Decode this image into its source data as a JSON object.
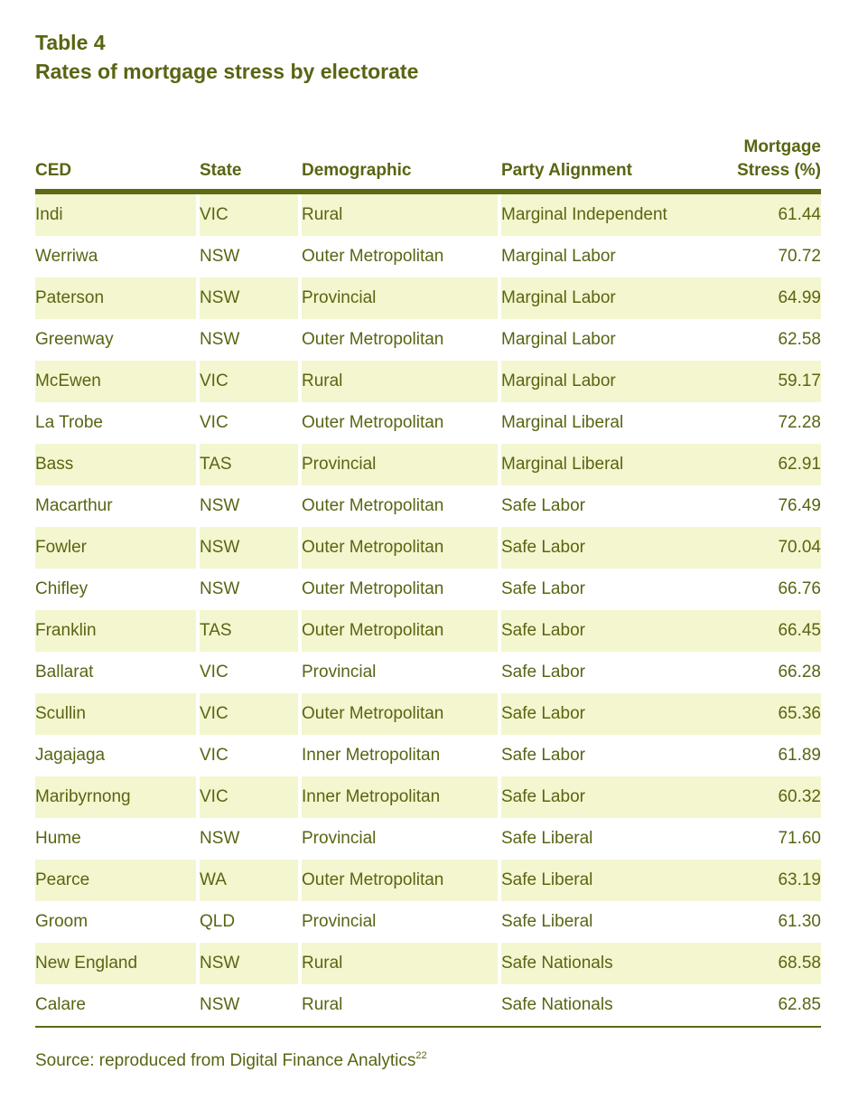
{
  "table_number": "Table 4",
  "table_title": "Rates of mortgage stress by electorate",
  "columns": {
    "ced": "CED",
    "state": "State",
    "demographic": "Demographic",
    "party": "Party Alignment",
    "stress_line1": "Mortgage",
    "stress_line2": "Stress (%)"
  },
  "rows": [
    {
      "ced": "Indi",
      "state": "VIC",
      "demographic": "Rural",
      "party": "Marginal Independent",
      "stress": "61.44"
    },
    {
      "ced": "Werriwa",
      "state": "NSW",
      "demographic": "Outer Metropolitan",
      "party": "Marginal Labor",
      "stress": "70.72"
    },
    {
      "ced": "Paterson",
      "state": "NSW",
      "demographic": "Provincial",
      "party": "Marginal Labor",
      "stress": "64.99"
    },
    {
      "ced": "Greenway",
      "state": "NSW",
      "demographic": "Outer Metropolitan",
      "party": "Marginal Labor",
      "stress": "62.58"
    },
    {
      "ced": "McEwen",
      "state": "VIC",
      "demographic": "Rural",
      "party": "Marginal Labor",
      "stress": "59.17"
    },
    {
      "ced": "La Trobe",
      "state": "VIC",
      "demographic": "Outer Metropolitan",
      "party": "Marginal Liberal",
      "stress": "72.28"
    },
    {
      "ced": "Bass",
      "state": "TAS",
      "demographic": "Provincial",
      "party": "Marginal Liberal",
      "stress": "62.91"
    },
    {
      "ced": "Macarthur",
      "state": "NSW",
      "demographic": "Outer Metropolitan",
      "party": "Safe Labor",
      "stress": "76.49"
    },
    {
      "ced": "Fowler",
      "state": "NSW",
      "demographic": "Outer Metropolitan",
      "party": "Safe Labor",
      "stress": "70.04"
    },
    {
      "ced": "Chifley",
      "state": "NSW",
      "demographic": "Outer Metropolitan",
      "party": "Safe Labor",
      "stress": "66.76"
    },
    {
      "ced": "Franklin",
      "state": "TAS",
      "demographic": "Outer Metropolitan",
      "party": "Safe Labor",
      "stress": "66.45"
    },
    {
      "ced": "Ballarat",
      "state": "VIC",
      "demographic": "Provincial",
      "party": "Safe Labor",
      "stress": "66.28"
    },
    {
      "ced": "Scullin",
      "state": "VIC",
      "demographic": "Outer Metropolitan",
      "party": "Safe Labor",
      "stress": "65.36"
    },
    {
      "ced": "Jagajaga",
      "state": "VIC",
      "demographic": "Inner Metropolitan",
      "party": "Safe Labor",
      "stress": "61.89"
    },
    {
      "ced": "Maribyrnong",
      "state": "VIC",
      "demographic": "Inner Metropolitan",
      "party": "Safe Labor",
      "stress": "60.32"
    },
    {
      "ced": "Hume",
      "state": "NSW",
      "demographic": "Provincial",
      "party": "Safe Liberal",
      "stress": "71.60"
    },
    {
      "ced": "Pearce",
      "state": "WA",
      "demographic": "Outer Metropolitan",
      "party": "Safe Liberal",
      "stress": "63.19"
    },
    {
      "ced": "Groom",
      "state": "QLD",
      "demographic": "Provincial",
      "party": "Safe Liberal",
      "stress": "61.30"
    },
    {
      "ced": "New England",
      "state": "NSW",
      "demographic": "Rural",
      "party": "Safe Nationals",
      "stress": "68.58"
    },
    {
      "ced": "Calare",
      "state": "NSW",
      "demographic": "Rural",
      "party": "Safe Nationals",
      "stress": "62.85"
    }
  ],
  "source": {
    "text": "Source: reproduced from Digital Finance Analytics",
    "footnote": "22"
  },
  "colors": {
    "text": "#5a6412",
    "rule": "#5e6a14",
    "stripe": "#f4f6cf"
  }
}
